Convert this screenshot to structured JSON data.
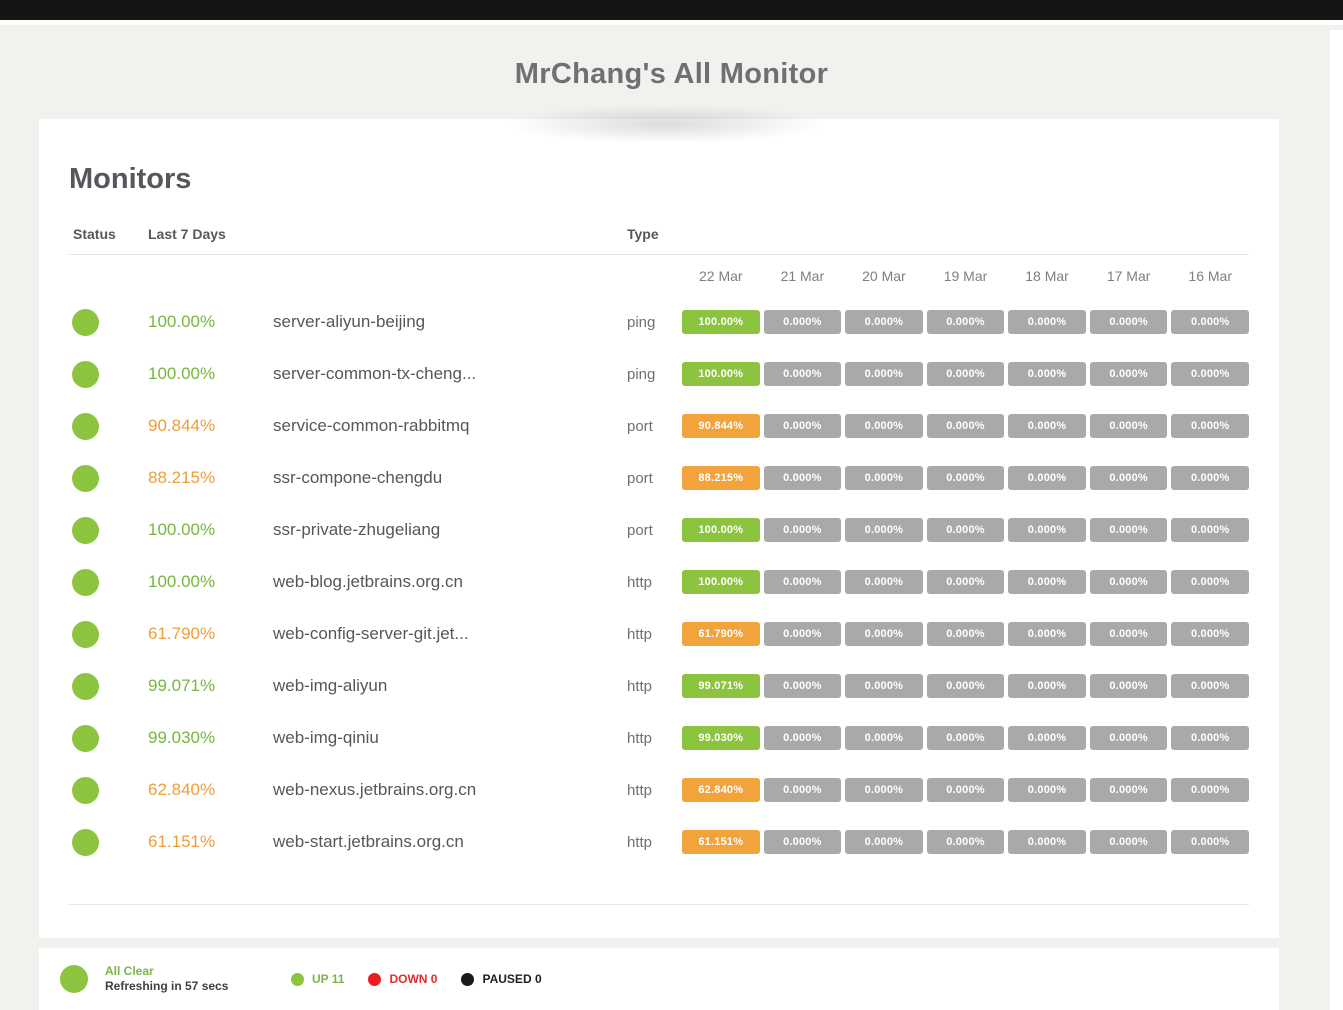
{
  "header": {
    "title": "MrChang's All Monitor"
  },
  "panel": {
    "title": "Monitors",
    "columns": {
      "status": "Status",
      "last7": "Last 7 Days",
      "type": "Type"
    },
    "dates": [
      "22 Mar",
      "21 Mar",
      "20 Mar",
      "19 Mar",
      "18 Mar",
      "17 Mar",
      "16 Mar"
    ],
    "monitors": [
      {
        "uptime": "100.00%",
        "state": "green",
        "name": "server-aliyun-beijing",
        "type": "ping",
        "days": [
          "100.00%",
          "0.000%",
          "0.000%",
          "0.000%",
          "0.000%",
          "0.000%",
          "0.000%"
        ]
      },
      {
        "uptime": "100.00%",
        "state": "green",
        "name": "server-common-tx-cheng...",
        "type": "ping",
        "days": [
          "100.00%",
          "0.000%",
          "0.000%",
          "0.000%",
          "0.000%",
          "0.000%",
          "0.000%"
        ]
      },
      {
        "uptime": "90.844%",
        "state": "orange",
        "name": "service-common-rabbitmq",
        "type": "port",
        "days": [
          "90.844%",
          "0.000%",
          "0.000%",
          "0.000%",
          "0.000%",
          "0.000%",
          "0.000%"
        ]
      },
      {
        "uptime": "88.215%",
        "state": "orange",
        "name": "ssr-compone-chengdu",
        "type": "port",
        "days": [
          "88.215%",
          "0.000%",
          "0.000%",
          "0.000%",
          "0.000%",
          "0.000%",
          "0.000%"
        ]
      },
      {
        "uptime": "100.00%",
        "state": "green",
        "name": "ssr-private-zhugeliang",
        "type": "port",
        "days": [
          "100.00%",
          "0.000%",
          "0.000%",
          "0.000%",
          "0.000%",
          "0.000%",
          "0.000%"
        ]
      },
      {
        "uptime": "100.00%",
        "state": "green",
        "name": "web-blog.jetbrains.org.cn",
        "type": "http",
        "days": [
          "100.00%",
          "0.000%",
          "0.000%",
          "0.000%",
          "0.000%",
          "0.000%",
          "0.000%"
        ]
      },
      {
        "uptime": "61.790%",
        "state": "orange",
        "name": "web-config-server-git.jet...",
        "type": "http",
        "days": [
          "61.790%",
          "0.000%",
          "0.000%",
          "0.000%",
          "0.000%",
          "0.000%",
          "0.000%"
        ]
      },
      {
        "uptime": "99.071%",
        "state": "green",
        "name": "web-img-aliyun",
        "type": "http",
        "days": [
          "99.071%",
          "0.000%",
          "0.000%",
          "0.000%",
          "0.000%",
          "0.000%",
          "0.000%"
        ]
      },
      {
        "uptime": "99.030%",
        "state": "green",
        "name": "web-img-qiniu",
        "type": "http",
        "days": [
          "99.030%",
          "0.000%",
          "0.000%",
          "0.000%",
          "0.000%",
          "0.000%",
          "0.000%"
        ]
      },
      {
        "uptime": "62.840%",
        "state": "orange",
        "name": "web-nexus.jetbrains.org.cn",
        "type": "http",
        "days": [
          "62.840%",
          "0.000%",
          "0.000%",
          "0.000%",
          "0.000%",
          "0.000%",
          "0.000%"
        ]
      },
      {
        "uptime": "61.151%",
        "state": "orange",
        "name": "web-start.jetbrains.org.cn",
        "type": "http",
        "days": [
          "61.151%",
          "0.000%",
          "0.000%",
          "0.000%",
          "0.000%",
          "0.000%",
          "0.000%"
        ]
      }
    ]
  },
  "footer": {
    "status_label": "All Clear",
    "refresh_text": "Refreshing in 57 secs",
    "legend": [
      {
        "label": "UP 11",
        "color": "green"
      },
      {
        "label": "DOWN 0",
        "color": "red"
      },
      {
        "label": "PAUSED 0",
        "color": "black"
      }
    ]
  },
  "colors": {
    "up_green": "#8cc43f",
    "warn_orange": "#f2a33c",
    "no_data_gray": "#a9a9a9",
    "down_red": "#ed1c24",
    "paused_black": "#1a1a1a",
    "page_background": "#f1f1ee",
    "topbar_black": "#151515"
  }
}
